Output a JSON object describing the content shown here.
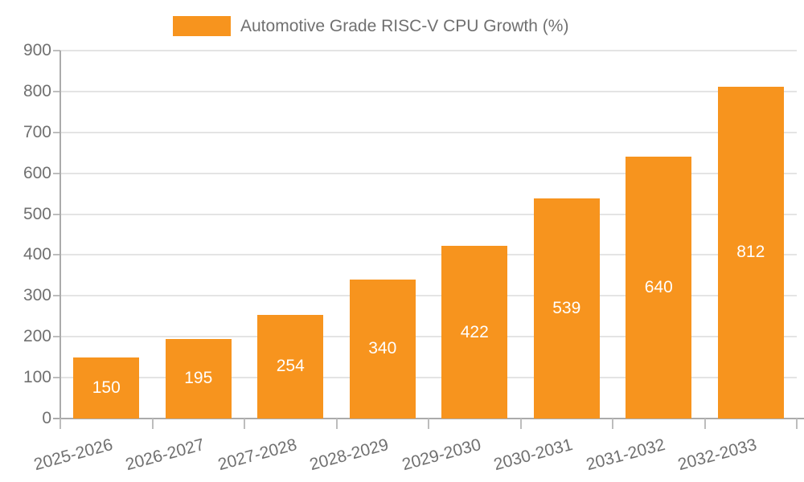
{
  "legend": {
    "label": "Automotive Grade RISC-V CPU Growth (%)"
  },
  "chart_data": {
    "type": "bar",
    "title": "Automotive Grade RISC-V CPU Growth (%)",
    "categories": [
      "2025-2026",
      "2026-2027",
      "2027-2028",
      "2028-2029",
      "2029-2030",
      "2030-2031",
      "2031-2032",
      "2032-2033"
    ],
    "values": [
      150,
      195,
      254,
      340,
      422,
      539,
      640,
      812
    ],
    "xlabel": "",
    "ylabel": "",
    "ylim": [
      0,
      900
    ],
    "yticks": [
      0,
      100,
      200,
      300,
      400,
      500,
      600,
      700,
      800,
      900
    ],
    "grid": true,
    "legend_position": "top",
    "value_labels_shown": true,
    "colors": {
      "bar": "#F7941E",
      "value_label": "#FFFFFF",
      "axis_text": "#707070",
      "axis_line": "#ABABAB",
      "tick_line": "#BDBDBD",
      "gridline": "#E4E4E4",
      "background": "#FFFFFF"
    }
  }
}
